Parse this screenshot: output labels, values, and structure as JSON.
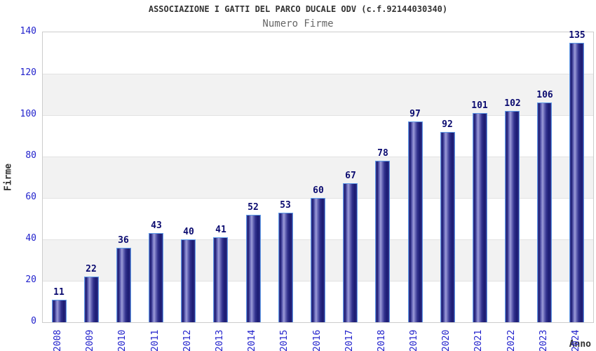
{
  "header": {
    "title": "ASSOCIAZIONE I GATTI DEL PARCO DUCALE ODV (c.f.92144030340)",
    "subtitle": "Numero Firme"
  },
  "chart_data": {
    "type": "bar",
    "title": "ASSOCIAZIONE I GATTI DEL PARCO DUCALE ODV (c.f.92144030340)",
    "subtitle": "Numero Firme",
    "xlabel": "Anno",
    "ylabel": "Firme",
    "categories": [
      "2008",
      "2009",
      "2010",
      "2011",
      "2012",
      "2013",
      "2014",
      "2015",
      "2016",
      "2017",
      "2018",
      "2019",
      "2020",
      "2021",
      "2022",
      "2023",
      "2024"
    ],
    "values": [
      11,
      22,
      36,
      43,
      40,
      41,
      52,
      53,
      60,
      67,
      78,
      97,
      92,
      101,
      102,
      106,
      135
    ],
    "ylim": [
      0,
      140
    ],
    "yticks": [
      0,
      20,
      40,
      60,
      80,
      100,
      120,
      140
    ],
    "grid": "horizontal-bands-alternating",
    "legend": "none",
    "bar_labels_shown": true
  },
  "colors": {
    "axis_text_blue": "#2222cc",
    "value_label_navy": "#0b0b70",
    "title_text": "#333333",
    "subtitle_text": "#666666",
    "band_gray": "#f2f2f2",
    "plot_border": "#cccccc",
    "gridline": "#e2e2e2",
    "bar_border_lightblue": "#5f9be7",
    "bar_dark": "#1a1a72",
    "bar_highlight": "#9d9dd8"
  }
}
